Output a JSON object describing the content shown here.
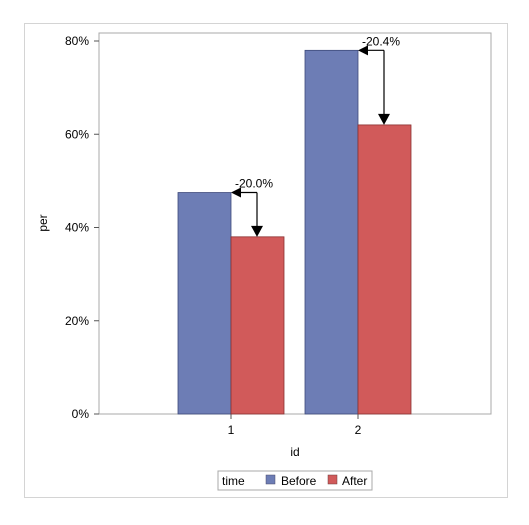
{
  "chart_data": {
    "type": "bar",
    "xlabel": "id",
    "ylabel": "per",
    "categories": [
      "1",
      "2"
    ],
    "ylim": [
      0,
      0.8
    ],
    "yticks": [
      "0%",
      "20%",
      "40%",
      "60%",
      "80%"
    ],
    "series": [
      {
        "name": "Before",
        "values": [
          0.475,
          0.78
        ],
        "color": "#6d7db5"
      },
      {
        "name": "After",
        "values": [
          0.38,
          0.62
        ],
        "color": "#d15a5a"
      }
    ],
    "annotations": [
      "-20.0%",
      "-20.4%"
    ],
    "legend": {
      "title": "time",
      "position": "bottom-center"
    },
    "grid": false
  }
}
